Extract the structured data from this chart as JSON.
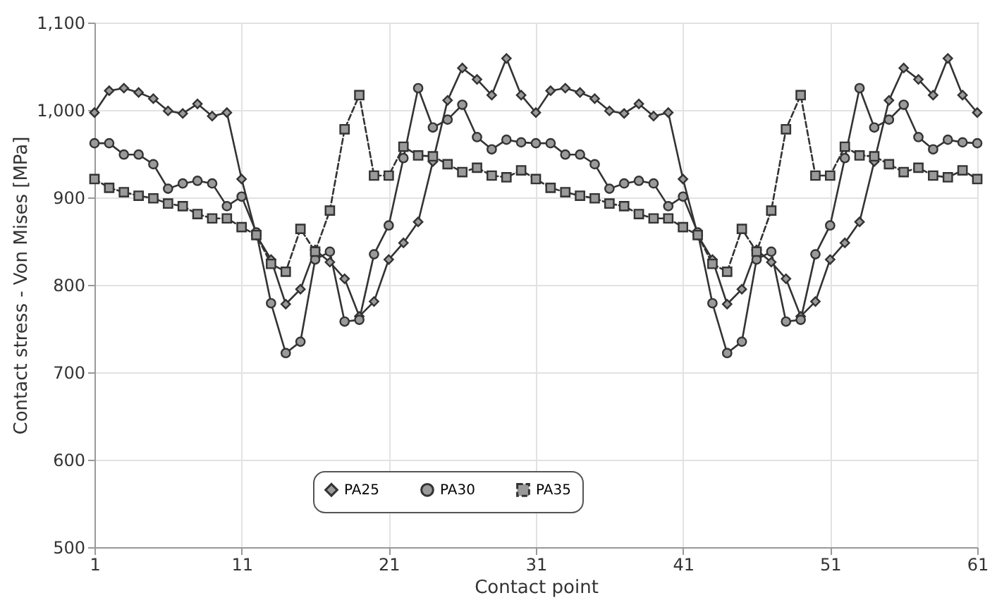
{
  "chart_data": {
    "type": "line",
    "xlabel": "Contact point",
    "ylabel": "Contact stress - Von Mises [MPa]",
    "x": [
      1,
      2,
      3,
      4,
      5,
      6,
      7,
      8,
      9,
      10,
      11,
      12,
      13,
      14,
      15,
      16,
      17,
      18,
      19,
      20,
      21,
      22,
      23,
      24,
      25,
      26,
      27,
      28,
      29,
      30,
      31,
      32,
      33,
      34,
      35,
      36,
      37,
      38,
      39,
      40,
      41,
      42,
      43,
      44,
      45,
      46,
      47,
      48,
      49,
      50,
      51,
      52,
      53,
      54,
      55,
      56,
      57,
      58,
      59,
      60,
      61
    ],
    "xlim": [
      1,
      61
    ],
    "xticks": [
      1,
      11,
      21,
      31,
      41,
      51,
      61
    ],
    "ylim": [
      500,
      1100
    ],
    "yticks": [
      500,
      600,
      700,
      800,
      900,
      {
        "value": 1000,
        "label": "1,000"
      },
      {
        "value": 1100,
        "label": "1,100"
      }
    ],
    "grid": true,
    "legend": "bottom",
    "series": [
      {
        "name": "PA25",
        "color": "#333333",
        "marker": "diamond",
        "line_style": "solid",
        "values": [
          997,
          1022,
          1025,
          1020,
          1013,
          999,
          996,
          1007,
          993,
          997,
          921,
          857,
          829,
          778,
          795,
          840,
          826,
          807,
          764,
          781,
          829,
          848,
          872,
          941,
          1011,
          1048,
          1035,
          1017,
          1059,
          1017,
          997,
          1022,
          1025,
          1020,
          1013,
          999,
          996,
          1007,
          993,
          997,
          921,
          857,
          829,
          778,
          795,
          840,
          826,
          807,
          764,
          781,
          829,
          848,
          872,
          941,
          1011,
          1048,
          1035,
          1017,
          1059,
          1017,
          997
        ]
      },
      {
        "name": "PA30",
        "color": "#333333",
        "marker": "circle",
        "line_style": "solid",
        "values": [
          962,
          962,
          949,
          949,
          938,
          910,
          916,
          919,
          916,
          890,
          901,
          860,
          779,
          722,
          735,
          829,
          838,
          758,
          760,
          835,
          868,
          945,
          1025,
          980,
          989,
          1006,
          969,
          955,
          966,
          963,
          962,
          962,
          949,
          949,
          938,
          910,
          916,
          919,
          916,
          890,
          901,
          860,
          779,
          722,
          735,
          829,
          838,
          758,
          760,
          835,
          868,
          945,
          1025,
          980,
          989,
          1006,
          969,
          955,
          966,
          963,
          962
        ]
      },
      {
        "name": "PA35",
        "color": "#333333",
        "marker": "square",
        "line_style": "dashed",
        "values": [
          921,
          911,
          906,
          902,
          899,
          893,
          890,
          881,
          876,
          876,
          866,
          857,
          824,
          815,
          864,
          838,
          885,
          978,
          1017,
          925,
          925,
          958,
          948,
          947,
          938,
          929,
          934,
          925,
          923,
          931,
          921,
          911,
          906,
          902,
          899,
          893,
          890,
          881,
          876,
          876,
          866,
          857,
          824,
          815,
          864,
          838,
          885,
          978,
          1017,
          925,
          925,
          958,
          948,
          947,
          938,
          929,
          934,
          925,
          923,
          931,
          921
        ]
      }
    ]
  }
}
